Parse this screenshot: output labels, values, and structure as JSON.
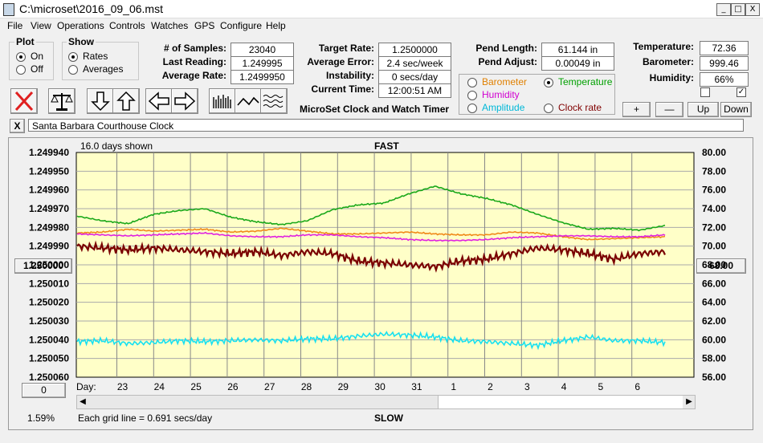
{
  "window": {
    "title": "C:\\microset\\2016_09_06.mst",
    "minimize": "_",
    "maximize": "□",
    "close": "X"
  },
  "menu": [
    "File",
    "View",
    "Operations",
    "Controls",
    "Watches",
    "GPS",
    "Configure",
    "Help"
  ],
  "plot_group": {
    "title": "Plot",
    "options": [
      "On",
      "Off"
    ],
    "selected": "On"
  },
  "show_group": {
    "title": "Show",
    "options": [
      "Rates",
      "Averages"
    ],
    "selected": "Rates"
  },
  "stats": {
    "samples_label": "# of Samples:",
    "samples": "23040",
    "last_label": "Last Reading:",
    "last": "1.249995",
    "avg_label": "Average Rate:",
    "avg": "1.2499950",
    "target_label": "Target Rate:",
    "target": "1.2500000",
    "err_label": "Average Error:",
    "err": "2.4 sec/week",
    "inst_label": "Instability:",
    "inst": "0 secs/day",
    "time_label": "Current Time:",
    "time": "12:00:51 AM",
    "pend_len_label": "Pend Length:",
    "pend_len": "61.144 in",
    "pend_adj_label": "Pend Adjust:",
    "pend_adj": "0.00049 in",
    "temp_label": "Temperature:",
    "temp": "72.36",
    "baro_label": "Barometer:",
    "baro": "999.46",
    "hum_label": "Humidity:",
    "hum": "66%"
  },
  "app_name": "MicroSet Clock and Watch Timer",
  "sensor_select": {
    "options": [
      {
        "label": "Barometer",
        "color": "#e08000"
      },
      {
        "label": "Temperature",
        "color": "#00a000"
      },
      {
        "label": "Humidity",
        "color": "#d000d0"
      },
      {
        "label": "Amplitude",
        "color": "#00b8d8"
      },
      {
        "label": "Clock rate",
        "color": "#800000"
      }
    ],
    "selected": "Temperature"
  },
  "sensor_buttons": [
    "+",
    "—",
    "Up",
    "Down"
  ],
  "close_x": "X",
  "clock_name": "Santa Barbara Courthouse Clock",
  "chart_top": {
    "days_shown": "16.0 days shown",
    "fast": "FAST",
    "slow": "SLOW",
    "grid_note": "Each grid line = 0.691 secs/day",
    "percent": "1.59%"
  },
  "left_axis_button": "1.250000",
  "right_axis_button": "68.00",
  "left_bottom_button": "0",
  "chart_data": {
    "type": "line",
    "left_ticks": [
      "1.249940",
      "1.249950",
      "1.249960",
      "1.249970",
      "1.249980",
      "1.249990",
      "1.250000",
      "1.250010",
      "1.250020",
      "1.250030",
      "1.250040",
      "1.250050",
      "1.250060"
    ],
    "right_ticks": [
      "80.00",
      "78.00",
      "76.00",
      "74.00",
      "72.00",
      "70.00",
      "68.00",
      "66.00",
      "64.00",
      "62.00",
      "60.00",
      "58.00",
      "56.00"
    ],
    "x_label": "Day:",
    "day_ticks": [
      "23",
      "24",
      "25",
      "26",
      "27",
      "28",
      "29",
      "30",
      "31",
      "1",
      "2",
      "3",
      "4",
      "5",
      "6"
    ],
    "series": [
      {
        "name": "Temperature",
        "color": "#1aa81a",
        "y": [
          73.2,
          72.7,
          72.4,
          73.4,
          73.8,
          74.0,
          73.1,
          72.6,
          72.3,
          72.7,
          73.9,
          74.4,
          74.6,
          75.6,
          76.4,
          75.6,
          75.1,
          74.4,
          73.4,
          72.5,
          71.8,
          71.9,
          71.7,
          72.2
        ]
      },
      {
        "name": "Barometer",
        "color": "#f08a1a",
        "y": [
          71.4,
          71.5,
          71.8,
          71.6,
          71.7,
          71.8,
          71.5,
          71.6,
          71.9,
          71.6,
          71.3,
          71.3,
          71.4,
          71.5,
          71.3,
          71.2,
          71.2,
          71.5,
          71.4,
          71.0,
          70.7,
          70.8,
          70.9,
          71.0
        ]
      },
      {
        "name": "Humidity",
        "color": "#e020e0",
        "y": [
          71.3,
          71.2,
          71.1,
          71.2,
          71.3,
          71.4,
          71.1,
          71.0,
          71.0,
          71.2,
          71.2,
          71.0,
          70.9,
          70.7,
          70.6,
          70.6,
          70.7,
          70.9,
          71.0,
          71.1,
          71.1,
          71.0,
          71.0,
          71.2
        ]
      },
      {
        "name": "Clock rate",
        "color": "#7a0000",
        "y": [
          1.24999,
          1.249991,
          1.249992,
          1.249991,
          1.249992,
          1.249993,
          1.249994,
          1.249993,
          1.249995,
          1.249993,
          1.249994,
          1.249998,
          1.249999,
          1.25,
          1.250001,
          1.249998,
          1.249997,
          1.249994,
          1.249991,
          1.249992,
          1.249994,
          1.249997,
          1.249994,
          1.249993
        ]
      },
      {
        "name": "Amplitude",
        "color": "#18e0f0",
        "y": [
          59.8,
          59.9,
          59.6,
          59.7,
          59.9,
          59.8,
          59.9,
          60.0,
          59.9,
          60.1,
          60.1,
          60.4,
          60.6,
          60.5,
          60.3,
          59.9,
          59.8,
          59.6,
          59.4,
          59.9,
          60.3,
          59.9,
          59.9,
          59.7
        ]
      }
    ]
  }
}
